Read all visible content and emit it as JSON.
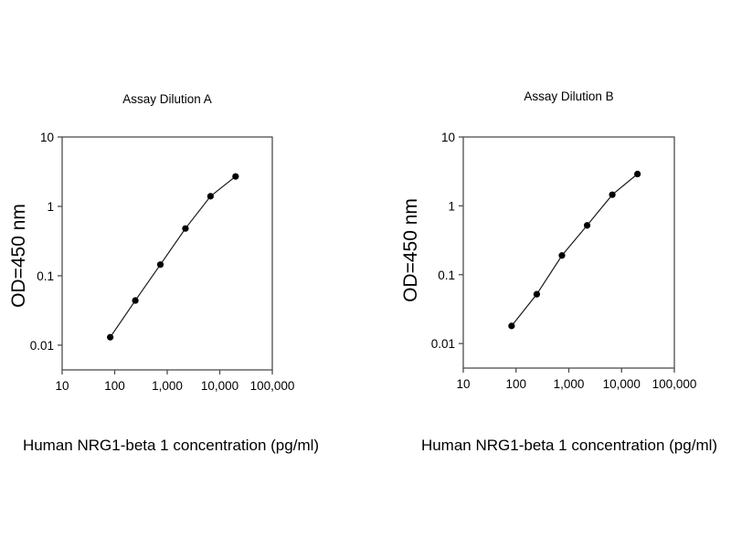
{
  "chart_data": [
    {
      "type": "line",
      "title": "Assay Dilution A",
      "xlabel": "Human NRG1-beta 1 concentration (pg/ml)",
      "ylabel": "OD=450 nm",
      "x_scale": "log",
      "y_scale": "log",
      "x": [
        82.3,
        247,
        741,
        2222,
        6667,
        20000
      ],
      "y": [
        0.013,
        0.044,
        0.145,
        0.48,
        1.4,
        2.7
      ],
      "x_ticks": [
        10,
        100,
        1000,
        10000,
        100000
      ],
      "x_tick_labels": [
        "10",
        "100",
        "1,000",
        "10,000",
        "100,000"
      ],
      "y_ticks": [
        10,
        1,
        0.1,
        0.01
      ],
      "y_tick_labels": [
        "10",
        "1",
        "0.1",
        "0.01"
      ],
      "xlim": [
        10,
        100000
      ],
      "ylim": [
        0.0044,
        10
      ],
      "grid": false,
      "legend": null,
      "marker": "filled-circle",
      "colors": {
        "line": "#1a1a1a",
        "marker": "#000000",
        "axis": "#4d4d4d",
        "text": "#000000"
      }
    },
    {
      "type": "line",
      "title": "Assay Dilution B",
      "xlabel": "Human NRG1-beta 1 concentration (pg/ml)",
      "ylabel": "OD=450 nm",
      "x_scale": "log",
      "y_scale": "log",
      "x": [
        82.3,
        247,
        741,
        2222,
        6667,
        20000
      ],
      "y": [
        0.018,
        0.052,
        0.19,
        0.52,
        1.45,
        2.9
      ],
      "x_ticks": [
        10,
        100,
        1000,
        10000,
        100000
      ],
      "x_tick_labels": [
        "10",
        "100",
        "1,000",
        "10,000",
        "100,000"
      ],
      "y_ticks": [
        10,
        1,
        0.1,
        0.01
      ],
      "y_tick_labels": [
        "10",
        "1",
        "0.1",
        "0.01"
      ],
      "xlim": [
        10,
        100000
      ],
      "ylim": [
        0.0044,
        10
      ],
      "grid": false,
      "legend": null,
      "marker": "filled-circle",
      "colors": {
        "line": "#1a1a1a",
        "marker": "#000000",
        "axis": "#4d4d4d",
        "text": "#000000"
      }
    }
  ]
}
